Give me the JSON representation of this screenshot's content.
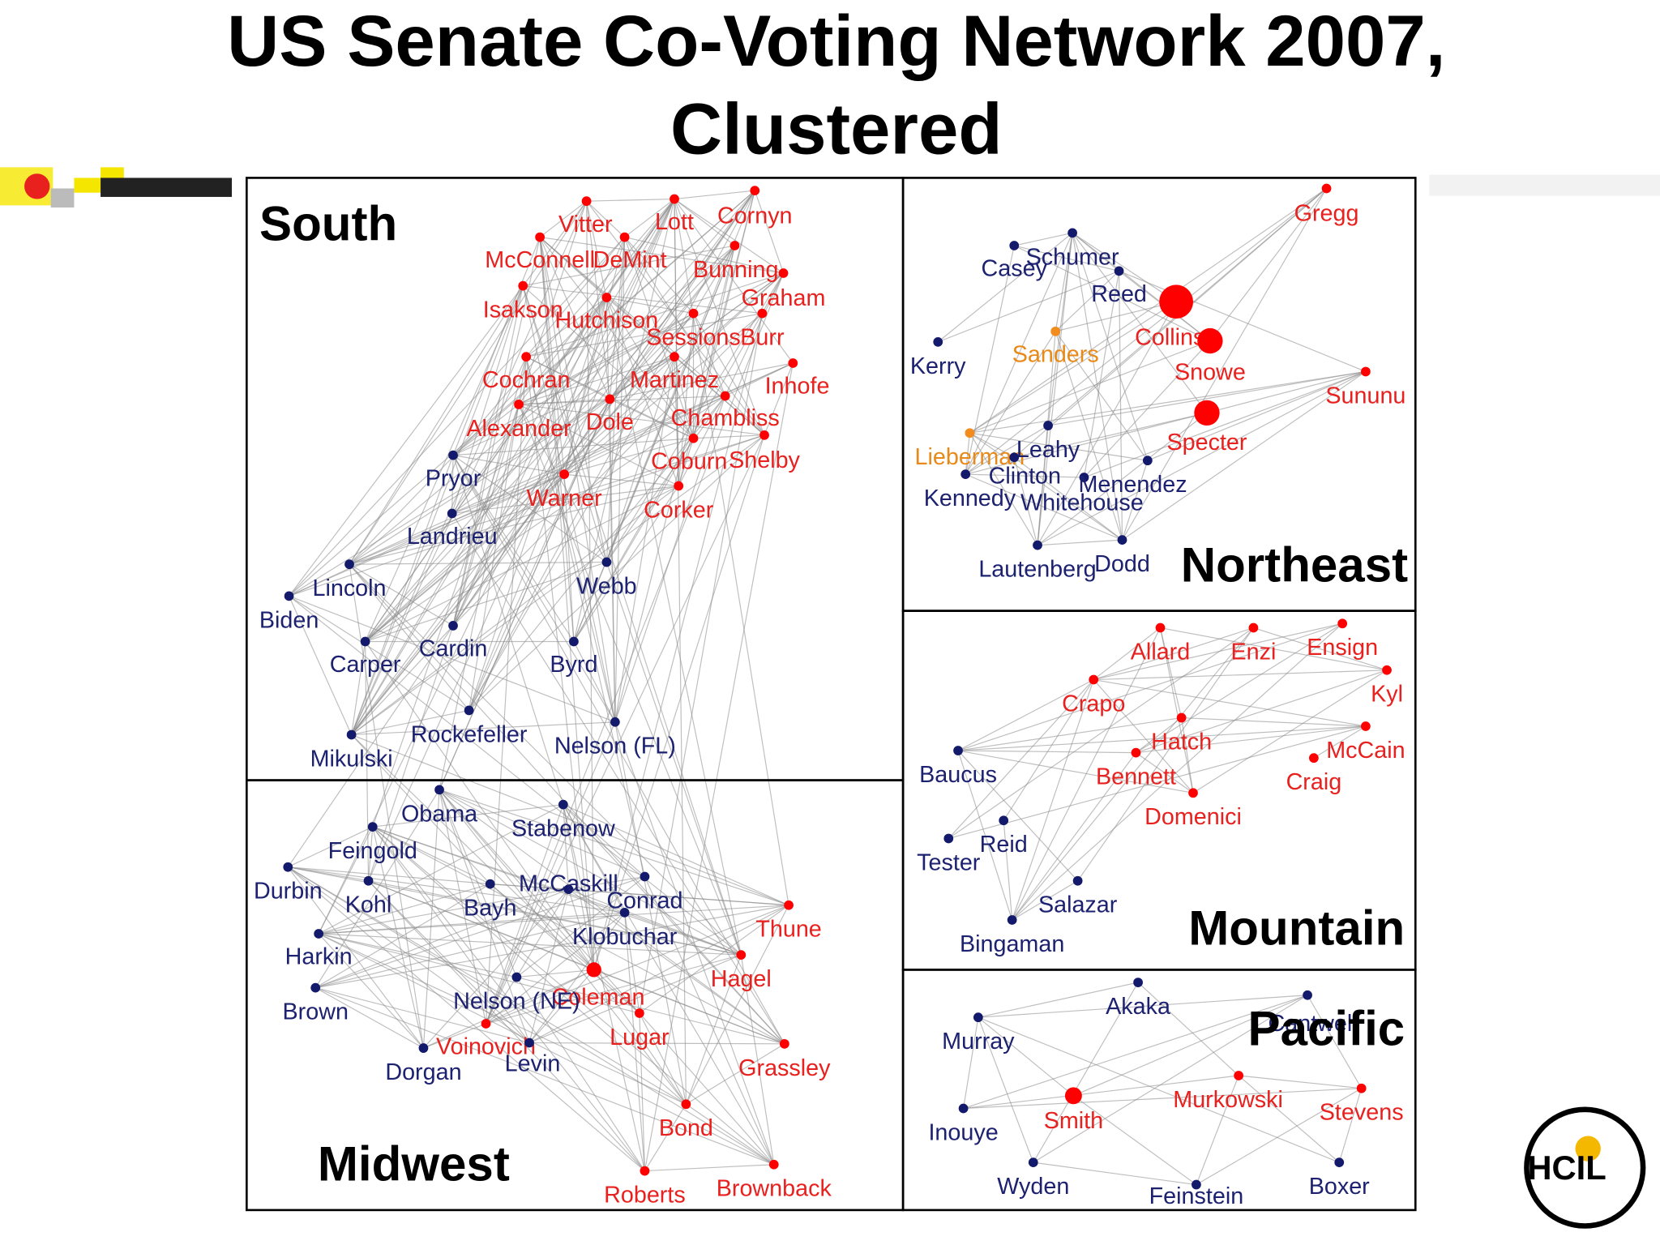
{
  "title_lines": [
    "US Senate Co-Voting Network 2007,",
    "Clustered"
  ],
  "clusters": [
    {
      "label": "South",
      "nodes": [
        "Vitter",
        "Lott",
        "Cornyn",
        "McConnell",
        "DeMint",
        "Bunning",
        "Graham",
        "Isakson",
        "Hutchison",
        "Sessions",
        "Burr",
        "Cochran",
        "Martinez",
        "Inhofe",
        "Alexander",
        "Dole",
        "Chambliss",
        "Coburn",
        "Shelby",
        "Warner",
        "Corker",
        "Pryor",
        "Landrieu",
        "Lincoln",
        "Biden",
        "Webb",
        "Carper",
        "Cardin",
        "Byrd",
        "Rockefeller",
        "Nelson (FL)",
        "Mikulski"
      ]
    },
    {
      "label": "Northeast",
      "nodes": [
        "Gregg",
        "Schumer",
        "Casey",
        "Reed",
        "Collins",
        "Snowe",
        "Specter",
        "Sununu",
        "Kerry",
        "Sanders",
        "Lieberman",
        "Leahy",
        "Clinton",
        "Kennedy",
        "Menendez",
        "Whitehouse",
        "Lautenberg",
        "Dodd"
      ]
    },
    {
      "label": "Mountain",
      "nodes": [
        "Allard",
        "Enzi",
        "Ensign",
        "Kyl",
        "Crapo",
        "Hatch",
        "McCain",
        "Bennett",
        "Craig",
        "Domenici",
        "Baucus",
        "Reid",
        "Tester",
        "Salazar",
        "Bingaman"
      ]
    },
    {
      "label": "Midwest",
      "nodes": [
        "Obama",
        "Stabenow",
        "Feingold",
        "Durbin",
        "Kohl",
        "Bayh",
        "McCaskill",
        "Conrad",
        "Klobuchar",
        "Thune",
        "Harkin",
        "Hagel",
        "Coleman",
        "Nelson (NE)",
        "Brown",
        "Lugar",
        "Voinovich",
        "Levin",
        "Dorgan",
        "Grassley",
        "Bond",
        "Roberts",
        "Brownback"
      ]
    },
    {
      "label": "Pacific",
      "nodes": [
        "Akaka",
        "Cantwell",
        "Murray",
        "Murkowski",
        "Stevens",
        "Smith",
        "Inouye",
        "Wyden",
        "Feinstein",
        "Boxer"
      ]
    }
  ],
  "logo": "HCIL"
}
